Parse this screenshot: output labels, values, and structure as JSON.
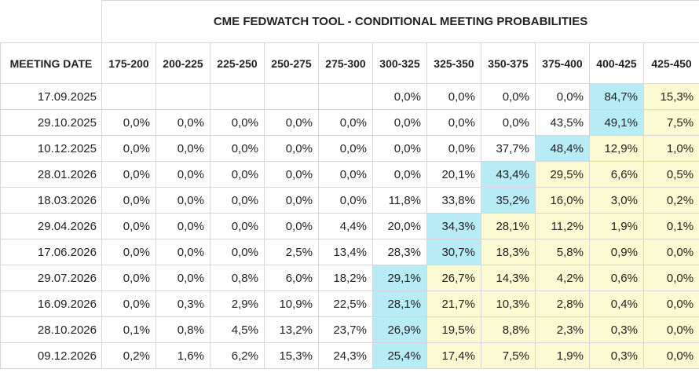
{
  "title": "CME FEDWATCH TOOL - CONDITIONAL MEETING PROBABILITIES",
  "date_header": "MEETING DATE",
  "ranges": [
    "175-200",
    "200-225",
    "225-250",
    "250-275",
    "275-300",
    "300-325",
    "325-350",
    "350-375",
    "375-400",
    "400-425",
    "425-450"
  ],
  "colors": {
    "max": "#b7ebf6",
    "soft": "#fbfad2"
  },
  "rows": [
    {
      "date": "17.09.2025",
      "values": [
        "",
        "",
        "",
        "",
        "",
        "0,0%",
        "0,0%",
        "0,0%",
        "0,0%",
        "84,7%",
        "15,3%"
      ],
      "max_index": 9,
      "soft_from": 10
    },
    {
      "date": "29.10.2025",
      "values": [
        "0,0%",
        "0,0%",
        "0,0%",
        "0,0%",
        "0,0%",
        "0,0%",
        "0,0%",
        "0,0%",
        "43,5%",
        "49,1%",
        "7,5%"
      ],
      "max_index": 9,
      "soft_from": 10
    },
    {
      "date": "10.12.2025",
      "values": [
        "0,0%",
        "0,0%",
        "0,0%",
        "0,0%",
        "0,0%",
        "0,0%",
        "0,0%",
        "37,7%",
        "48,4%",
        "12,9%",
        "1,0%"
      ],
      "max_index": 8,
      "soft_from": 9
    },
    {
      "date": "28.01.2026",
      "values": [
        "0,0%",
        "0,0%",
        "0,0%",
        "0,0%",
        "0,0%",
        "0,0%",
        "20,1%",
        "43,4%",
        "29,5%",
        "6,6%",
        "0,5%"
      ],
      "max_index": 7,
      "soft_from": 8
    },
    {
      "date": "18.03.2026",
      "values": [
        "0,0%",
        "0,0%",
        "0,0%",
        "0,0%",
        "0,0%",
        "11,8%",
        "33,8%",
        "35,2%",
        "16,0%",
        "3,0%",
        "0,2%"
      ],
      "max_index": 7,
      "soft_from": 8
    },
    {
      "date": "29.04.2026",
      "values": [
        "0,0%",
        "0,0%",
        "0,0%",
        "0,0%",
        "4,4%",
        "20,0%",
        "34,3%",
        "28,1%",
        "11,2%",
        "1,9%",
        "0,1%"
      ],
      "max_index": 6,
      "soft_from": 7
    },
    {
      "date": "17.06.2026",
      "values": [
        "0,0%",
        "0,0%",
        "0,0%",
        "2,5%",
        "13,4%",
        "28,3%",
        "30,7%",
        "18,3%",
        "5,8%",
        "0,9%",
        "0,0%"
      ],
      "max_index": 6,
      "soft_from": 7
    },
    {
      "date": "29.07.2026",
      "values": [
        "0,0%",
        "0,0%",
        "0,8%",
        "6,0%",
        "18,2%",
        "29,1%",
        "26,7%",
        "14,3%",
        "4,2%",
        "0,6%",
        "0,0%"
      ],
      "max_index": 5,
      "soft_from": 6
    },
    {
      "date": "16.09.2026",
      "values": [
        "0,0%",
        "0,3%",
        "2,9%",
        "10,9%",
        "22,5%",
        "28,1%",
        "21,7%",
        "10,3%",
        "2,8%",
        "0,4%",
        "0,0%"
      ],
      "max_index": 5,
      "soft_from": 6
    },
    {
      "date": "28.10.2026",
      "values": [
        "0,1%",
        "0,8%",
        "4,5%",
        "13,2%",
        "23,7%",
        "26,9%",
        "19,5%",
        "8,8%",
        "2,3%",
        "0,3%",
        "0,0%"
      ],
      "max_index": 5,
      "soft_from": 6
    },
    {
      "date": "09.12.2026",
      "values": [
        "0,2%",
        "1,6%",
        "6,2%",
        "15,3%",
        "24,3%",
        "25,4%",
        "17,4%",
        "7,5%",
        "1,9%",
        "0,3%",
        "0,0%"
      ],
      "max_index": 5,
      "soft_from": 6
    }
  ]
}
